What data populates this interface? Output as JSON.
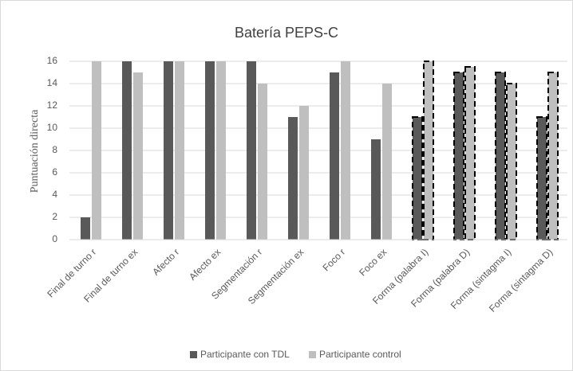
{
  "chart_data": {
    "type": "bar",
    "title": "Batería PEPS-C",
    "y_label": "Puntuación directa",
    "categories": [
      "Final de turno r",
      "Final de turno ex",
      "Afecto r",
      "Afecto ex",
      "Segmentación r",
      "Segmentación ex",
      "Foco r",
      "Foco ex",
      "Forma (palabra I)",
      "Forma (palabra D)",
      "Forma (sintagma I)",
      "Forma (sintagma D)"
    ],
    "series": [
      {
        "name": "Participante con TDL",
        "color": "#595959",
        "values": [
          2,
          16,
          16,
          16,
          16,
          11,
          15,
          9,
          11,
          15,
          15,
          11
        ]
      },
      {
        "name": "Participante control",
        "color": "#bfbfbf",
        "values": [
          16,
          15,
          16,
          16,
          14,
          12,
          16,
          14,
          16,
          15.5,
          14,
          15
        ]
      }
    ],
    "outline_dashed": [
      false,
      false,
      false,
      false,
      false,
      false,
      false,
      false,
      true,
      true,
      true,
      true
    ],
    "ylim": [
      0,
      16
    ],
    "yticks": [
      0,
      2,
      4,
      6,
      8,
      10,
      12,
      14,
      16
    ],
    "grid": true,
    "legend": "bottom"
  }
}
